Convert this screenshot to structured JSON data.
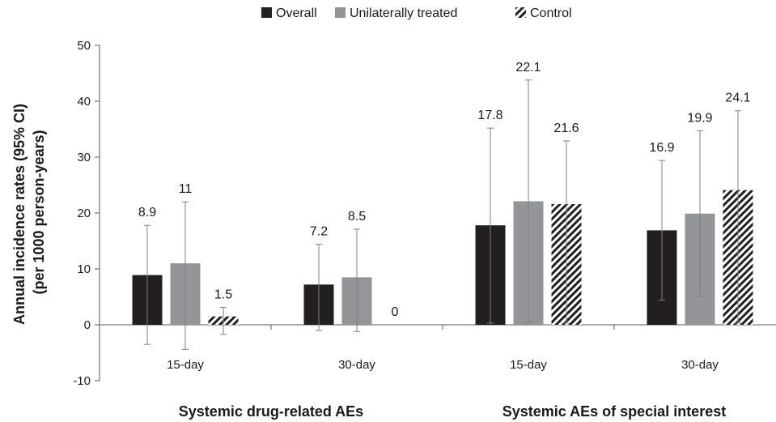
{
  "chart_data": {
    "type": "bar",
    "ylabel_lines": [
      "Annual incidence rates (95% CI)",
      "(per 1000 person-years)"
    ],
    "ylim": [
      -10,
      50
    ],
    "yticks": [
      -10,
      0,
      10,
      20,
      30,
      40,
      50
    ],
    "legend_position": "top",
    "categories": [
      "15-day",
      "30-day",
      "15-day",
      "30-day"
    ],
    "groups": [
      {
        "label": "Systemic drug-related AEs",
        "category_indices": [
          0,
          1
        ]
      },
      {
        "label": "Systemic AEs of special interest",
        "category_indices": [
          2,
          3
        ]
      }
    ],
    "series": [
      {
        "name": "Overall",
        "color": "#231f20",
        "pattern": "solid",
        "values": [
          8.9,
          7.2,
          17.8,
          16.9
        ],
        "ci_low": [
          -3.5,
          -1.0,
          0.3,
          4.4
        ],
        "ci_high": [
          17.8,
          14.4,
          35.2,
          29.4
        ]
      },
      {
        "name": "Unilaterally treated",
        "color": "#939598",
        "pattern": "solid",
        "values": [
          11,
          8.5,
          22.1,
          19.9
        ],
        "ci_low": [
          -4.4,
          -1.2,
          0.3,
          5.1
        ],
        "ci_high": [
          22.0,
          17.1,
          43.8,
          34.7
        ]
      },
      {
        "name": "Control",
        "color": "#231f20",
        "pattern": "hatched",
        "values": [
          1.5,
          0,
          21.6,
          24.1
        ],
        "ci_low": [
          -1.7,
          null,
          0.3,
          0.3
        ],
        "ci_high": [
          3.1,
          null,
          32.9,
          38.3
        ]
      }
    ],
    "value_labels": [
      [
        "8.9",
        "7.2",
        "17.8",
        "16.9"
      ],
      [
        "11",
        "8.5",
        "22.1",
        "19.9"
      ],
      [
        "1.5",
        "0",
        "21.6",
        "24.1"
      ]
    ]
  }
}
